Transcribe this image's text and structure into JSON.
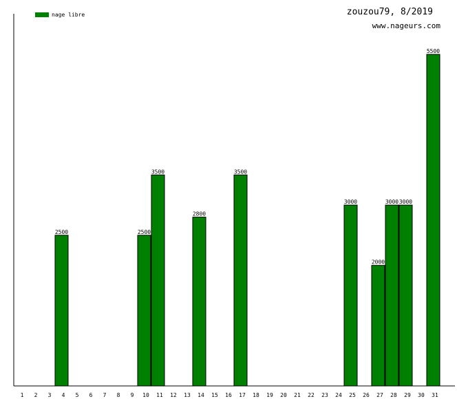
{
  "header": {
    "title": "zouzou79, 8/2019",
    "site": "www.nageurs.com"
  },
  "colors": {
    "bar": "#008000",
    "axis": "#000000"
  },
  "chart_data": {
    "type": "bar",
    "title": "zouzou79, 8/2019",
    "xlabel": "",
    "ylabel": "",
    "ylim": [
      0,
      5500
    ],
    "grid": false,
    "legend_position": "top-left",
    "categories": [
      "1",
      "2",
      "3",
      "4",
      "5",
      "6",
      "7",
      "8",
      "9",
      "10",
      "11",
      "12",
      "13",
      "14",
      "15",
      "16",
      "17",
      "18",
      "19",
      "20",
      "21",
      "22",
      "23",
      "24",
      "25",
      "26",
      "27",
      "28",
      "29",
      "30",
      "31"
    ],
    "series": [
      {
        "name": "nage libre",
        "values": [
          0,
          0,
          0,
          2500,
          0,
          0,
          0,
          0,
          0,
          2500,
          3500,
          0,
          0,
          2800,
          0,
          0,
          3500,
          0,
          0,
          0,
          0,
          0,
          0,
          0,
          3000,
          0,
          2000,
          3000,
          3000,
          0,
          5500
        ]
      }
    ]
  }
}
